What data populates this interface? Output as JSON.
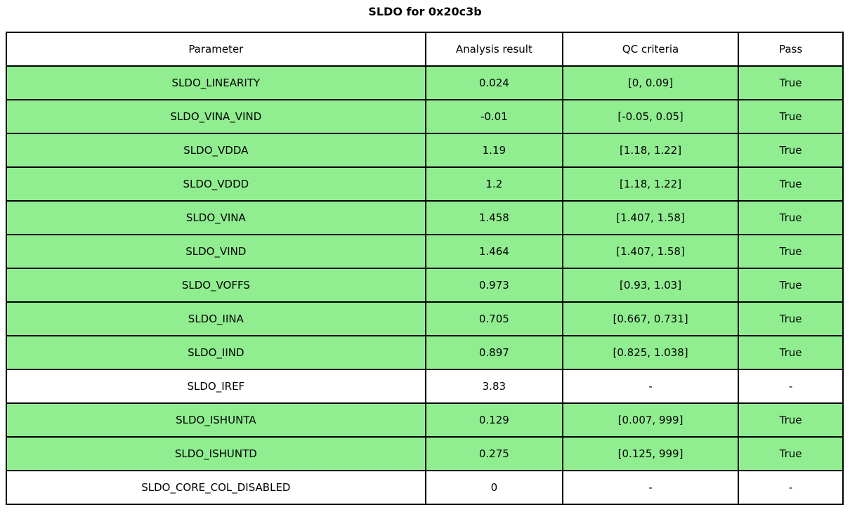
{
  "colors": {
    "pass_green": "#90EE90",
    "neutral_white": "#ffffff",
    "border": "#000000",
    "background": "#ffffff"
  },
  "chart_data": {
    "type": "table",
    "title": "SLDO for 0x20c3b",
    "columns": [
      "Parameter",
      "Analysis result",
      "QC criteria",
      "Pass"
    ],
    "rows": [
      {
        "parameter": "SLDO_LINEARITY",
        "result": "0.024",
        "criteria": "[0, 0.09]",
        "pass": "True",
        "highlight": "green"
      },
      {
        "parameter": "SLDO_VINA_VIND",
        "result": "-0.01",
        "criteria": "[-0.05, 0.05]",
        "pass": "True",
        "highlight": "green"
      },
      {
        "parameter": "SLDO_VDDA",
        "result": "1.19",
        "criteria": "[1.18, 1.22]",
        "pass": "True",
        "highlight": "green"
      },
      {
        "parameter": "SLDO_VDDD",
        "result": "1.2",
        "criteria": "[1.18, 1.22]",
        "pass": "True",
        "highlight": "green"
      },
      {
        "parameter": "SLDO_VINA",
        "result": "1.458",
        "criteria": "[1.407, 1.58]",
        "pass": "True",
        "highlight": "green"
      },
      {
        "parameter": "SLDO_VIND",
        "result": "1.464",
        "criteria": "[1.407, 1.58]",
        "pass": "True",
        "highlight": "green"
      },
      {
        "parameter": "SLDO_VOFFS",
        "result": "0.973",
        "criteria": "[0.93, 1.03]",
        "pass": "True",
        "highlight": "green"
      },
      {
        "parameter": "SLDO_IINA",
        "result": "0.705",
        "criteria": "[0.667, 0.731]",
        "pass": "True",
        "highlight": "green"
      },
      {
        "parameter": "SLDO_IIND",
        "result": "0.897",
        "criteria": "[0.825, 1.038]",
        "pass": "True",
        "highlight": "green"
      },
      {
        "parameter": "SLDO_IREF",
        "result": "3.83",
        "criteria": "-",
        "pass": "-",
        "highlight": "white"
      },
      {
        "parameter": "SLDO_ISHUNTA",
        "result": "0.129",
        "criteria": "[0.007, 999]",
        "pass": "True",
        "highlight": "green"
      },
      {
        "parameter": "SLDO_ISHUNTD",
        "result": "0.275",
        "criteria": "[0.125, 999]",
        "pass": "True",
        "highlight": "green"
      },
      {
        "parameter": "SLDO_CORE_COL_DISABLED",
        "result": "0",
        "criteria": "-",
        "pass": "-",
        "highlight": "white"
      }
    ]
  }
}
